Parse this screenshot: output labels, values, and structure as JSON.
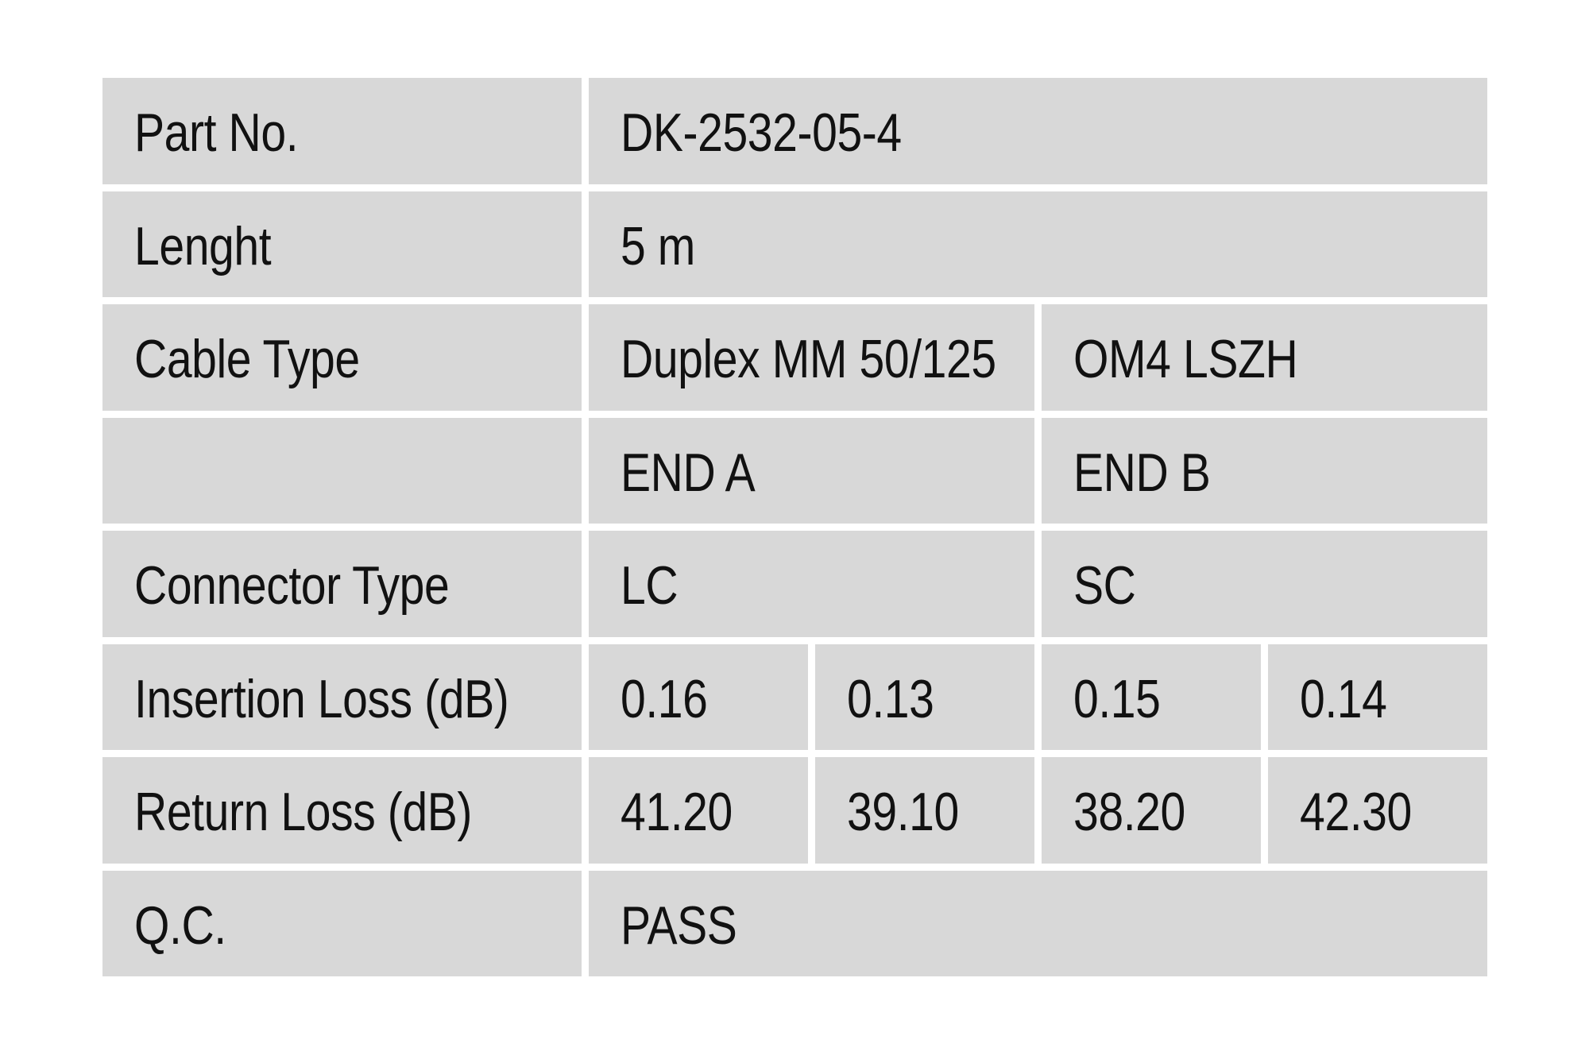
{
  "colors": {
    "page_background": "#ffffff",
    "cell_background": "#d8d8d8",
    "text": "#111111"
  },
  "table": {
    "rows": {
      "part_no": {
        "label": "Part No.",
        "value": "DK-2532-05-4"
      },
      "length": {
        "label": "Lenght",
        "value": "5 m"
      },
      "cable_type": {
        "label": "Cable Type",
        "value_left": "Duplex MM 50/125",
        "value_right": "OM4 LSZH"
      },
      "ends": {
        "label": "",
        "end_a": "END A",
        "end_b": "END B"
      },
      "connector_type": {
        "label": "Connector Type",
        "end_a": "LC",
        "end_b": "SC"
      },
      "insertion_loss": {
        "label": "Insertion Loss (dB)",
        "values": [
          "0.16",
          "0.13",
          "0.15",
          "0.14"
        ]
      },
      "return_loss": {
        "label": "Return Loss (dB)",
        "values": [
          "41.20",
          "39.10",
          "38.20",
          "42.30"
        ]
      },
      "qc": {
        "label": "Q.C.",
        "value": "PASS"
      }
    }
  }
}
